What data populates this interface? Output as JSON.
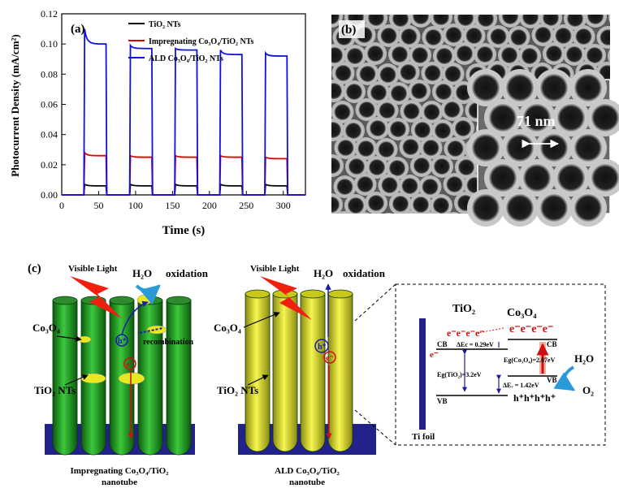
{
  "panel_a": {
    "label": "(a)",
    "ylabel": "Photocurrent Density (mA/cm²)",
    "xlabel": "Time (s)"
  },
  "panel_b": {
    "label": "(b)",
    "scale_label": "71 nm"
  },
  "panel_c": {
    "label": "(c)",
    "left": {
      "visible_light": "Visible Light",
      "h2o": "H₂O",
      "oxidation": "oxidation",
      "co3o4": "Co₃O₄",
      "tio2_nts": "TiO₂ NTs",
      "h_plus": "h⁺",
      "e_minus": "e⁻",
      "recombination": "recombination",
      "caption_line1": "Impregnating Co₃O₄/TiO₂",
      "caption_line2": "nanotube"
    },
    "middle": {
      "visible_light": "Visible Light",
      "h2o": "H₂O",
      "oxidation": "oxidation",
      "co3o4": "Co₃O₄",
      "tio2_nts": "TiO₂ NTs",
      "h_plus": "h⁺",
      "e_minus": "e⁻",
      "caption_line1": "ALD Co₃O₄/TiO₂",
      "caption_line2": "nanotube"
    },
    "band": {
      "tio2": "TiO₂",
      "co3o4": "Co₃O₄",
      "electrons_left": "e⁻e⁻e⁻e⁻",
      "electrons_right": "e⁻e⁻e⁻e⁻",
      "cb_left": "CB",
      "cb_right": "CB",
      "vb_left": "VB",
      "vb_right": "VB",
      "e_single": "e⁻",
      "delta_ec": "ΔEc = 0.29eV",
      "eg_co3o4": "Eg(Co₃O₄)=2.07eV",
      "eg_tio2": "Eg(TiO₂)=3.2eV",
      "delta_ev": "ΔEᵥ = 1.42eV",
      "holes": "h⁺h⁺h⁺h⁺",
      "h2o": "H₂O",
      "o2": "O₂",
      "ti_foil": "Ti foil"
    }
  },
  "colors": {
    "tio2": "#000000",
    "impregnating": "#e00000",
    "ald": "#1010e0",
    "substrate": "#22228a",
    "tube_green": "#1f9a1f",
    "tube_yellow": "#e8e820"
  },
  "chart_data": {
    "type": "line",
    "title": "",
    "xlabel": "Time (s)",
    "ylabel": "Photocurrent Density (mA/cm²)",
    "xlim": [
      0,
      330
    ],
    "ylim": [
      0,
      0.12
    ],
    "xticks": [
      0,
      50,
      100,
      150,
      200,
      250,
      300
    ],
    "yticks": [
      0.0,
      0.02,
      0.04,
      0.06,
      0.08,
      0.1,
      0.12
    ],
    "legend_position": "top-right",
    "on_intervals": [
      [
        30,
        60
      ],
      [
        92,
        122
      ],
      [
        153,
        183
      ],
      [
        214,
        244
      ],
      [
        275,
        305
      ]
    ],
    "series": [
      {
        "name": "TiO₂ NTs",
        "color": "#000000",
        "on_start": [
          0.007,
          0.007,
          0.007,
          0.007,
          0.007
        ],
        "on_end": [
          0.006,
          0.006,
          0.006,
          0.006,
          0.006
        ]
      },
      {
        "name": "Impregnating Co₃O₄/TiO₂ NTs",
        "color": "#e00000",
        "on_start": [
          0.028,
          0.026,
          0.026,
          0.026,
          0.025
        ],
        "on_end": [
          0.026,
          0.025,
          0.025,
          0.025,
          0.024
        ]
      },
      {
        "name": "ALD Co₃O₄/TiO₂ NTs",
        "color": "#1010e0",
        "on_start": [
          0.11,
          0.099,
          0.097,
          0.096,
          0.094
        ],
        "on_end": [
          0.1,
          0.097,
          0.096,
          0.093,
          0.092
        ]
      }
    ]
  }
}
